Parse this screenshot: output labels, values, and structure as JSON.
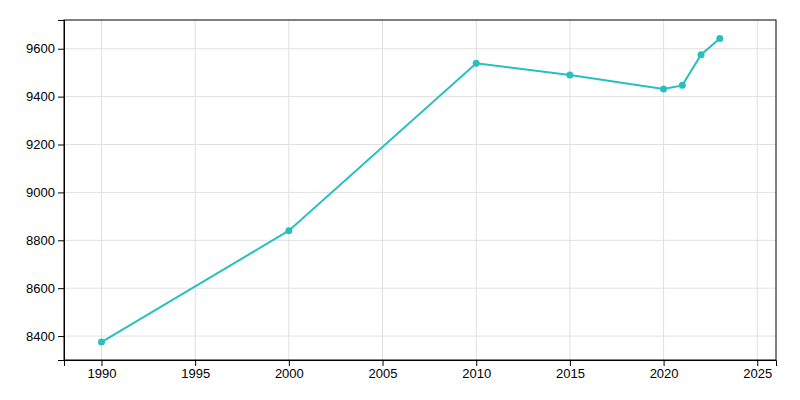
{
  "chart_data": {
    "type": "line",
    "x": [
      1990,
      2000,
      2010,
      2015,
      2020,
      2021,
      2022,
      2023
    ],
    "values": [
      8375,
      8840,
      9539,
      9490,
      9432,
      9447,
      9575,
      9643
    ],
    "color": "#2abfbf",
    "marker": "circle",
    "xlim": [
      1988,
      2026
    ],
    "ylim": [
      8300,
      9720
    ],
    "xticks": [
      1990,
      1995,
      2000,
      2005,
      2010,
      2015,
      2020,
      2025
    ],
    "yticks": [
      8400,
      8600,
      8800,
      9000,
      9200,
      9400,
      9600
    ],
    "grid": true
  }
}
